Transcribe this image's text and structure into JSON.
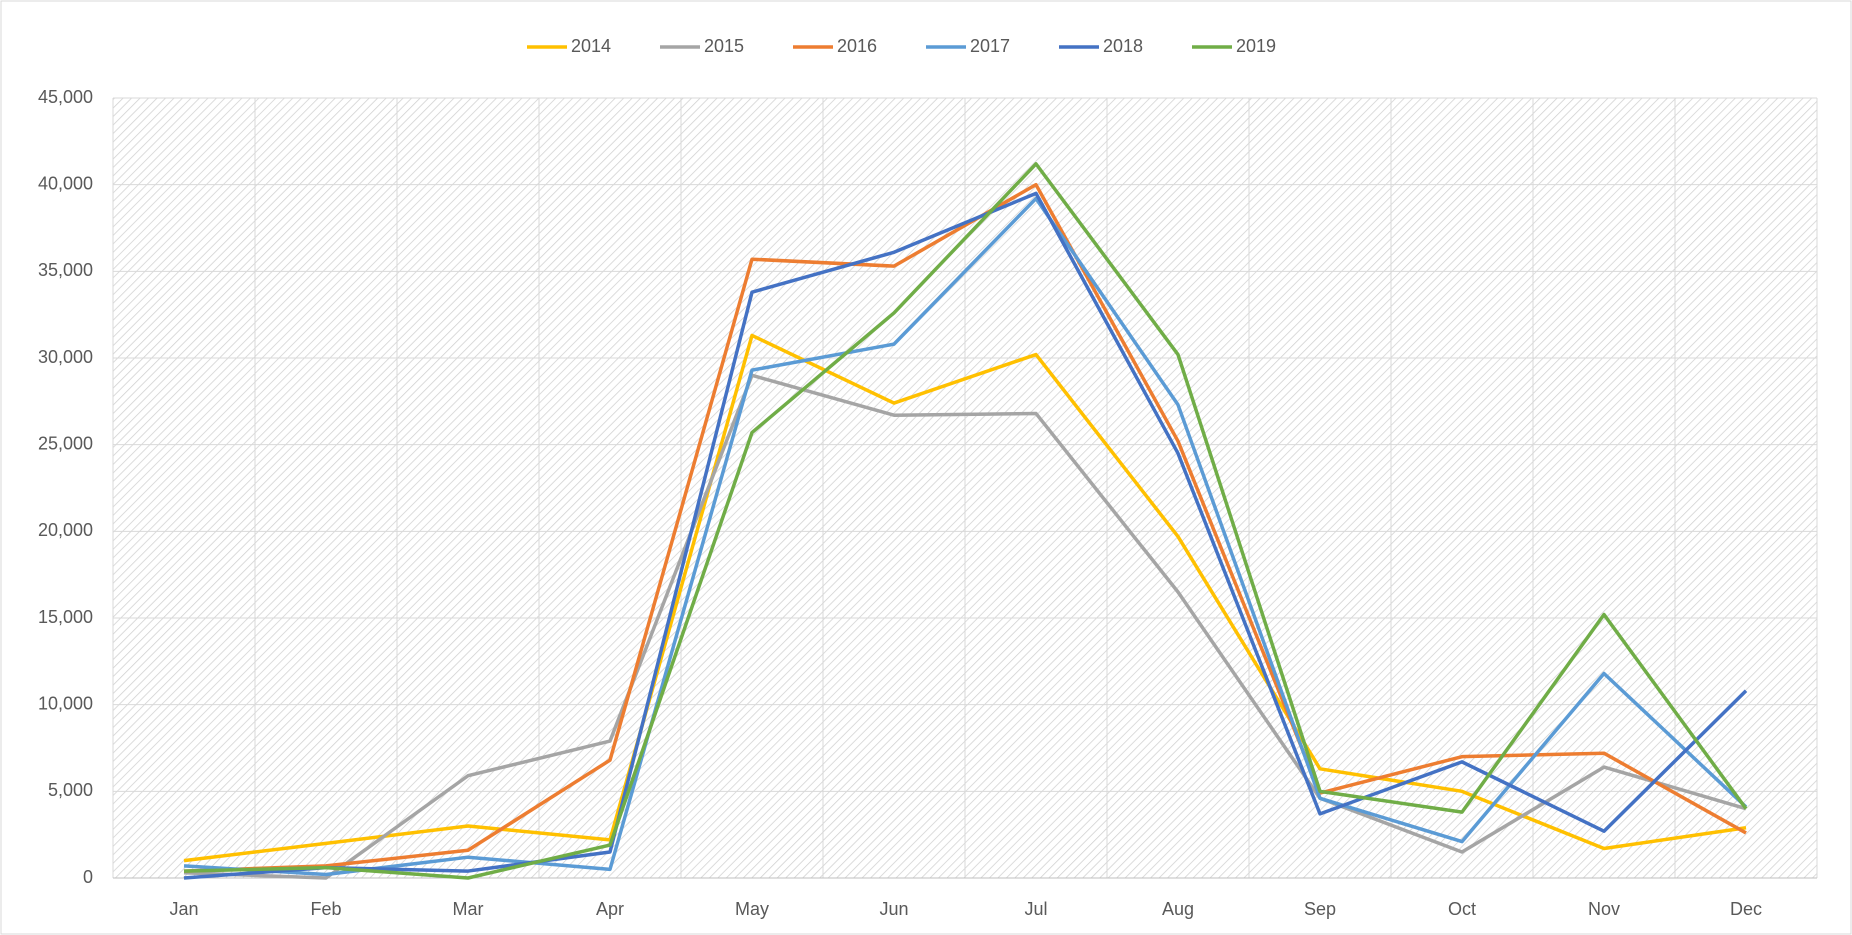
{
  "chart_data": {
    "type": "line",
    "categories": [
      "Jan",
      "Feb",
      "Mar",
      "Apr",
      "May",
      "Jun",
      "Jul",
      "Aug",
      "Sep",
      "Oct",
      "Nov",
      "Dec"
    ],
    "series": [
      {
        "name": "2014",
        "color": "#ffc000",
        "values": [
          1000,
          2000,
          3000,
          2200,
          31300,
          27400,
          30200,
          19700,
          6300,
          5000,
          1700,
          2900
        ]
      },
      {
        "name": "2015",
        "color": "#a5a5a5",
        "values": [
          300,
          0,
          5900,
          7900,
          29000,
          26700,
          26800,
          16500,
          4600,
          1500,
          6400,
          4000
        ]
      },
      {
        "name": "2016",
        "color": "#ed7d31",
        "values": [
          400,
          700,
          1600,
          6800,
          35700,
          35300,
          40000,
          25200,
          4900,
          7000,
          7200,
          2600
        ]
      },
      {
        "name": "2017",
        "color": "#5b9bd5",
        "values": [
          700,
          200,
          1200,
          500,
          29300,
          30800,
          39200,
          27300,
          4600,
          2100,
          11800,
          4100
        ]
      },
      {
        "name": "2018",
        "color": "#4472c4",
        "values": [
          0,
          600,
          400,
          1500,
          33800,
          36100,
          39500,
          24500,
          3700,
          6700,
          2700,
          10800
        ]
      },
      {
        "name": "2019",
        "color": "#70ad47",
        "values": [
          400,
          600,
          0,
          1900,
          25700,
          32600,
          41200,
          30200,
          5000,
          3800,
          15200,
          4000
        ]
      }
    ],
    "ylim": [
      0,
      45000
    ],
    "yticks": [
      0,
      {
        "value": 5000,
        "label": "5,000"
      },
      {
        "value": 10000,
        "label": "10,000"
      },
      {
        "value": 15000,
        "label": "15,000"
      },
      {
        "value": 20000,
        "label": "20,000"
      },
      {
        "value": 25000,
        "label": "25,000"
      },
      {
        "value": 30000,
        "label": "30,000"
      },
      {
        "value": 35000,
        "label": "35,000"
      },
      {
        "value": 40000,
        "label": "40,000"
      },
      {
        "value": 45000,
        "label": "45,000"
      }
    ],
    "grid": true,
    "legend": "top"
  }
}
